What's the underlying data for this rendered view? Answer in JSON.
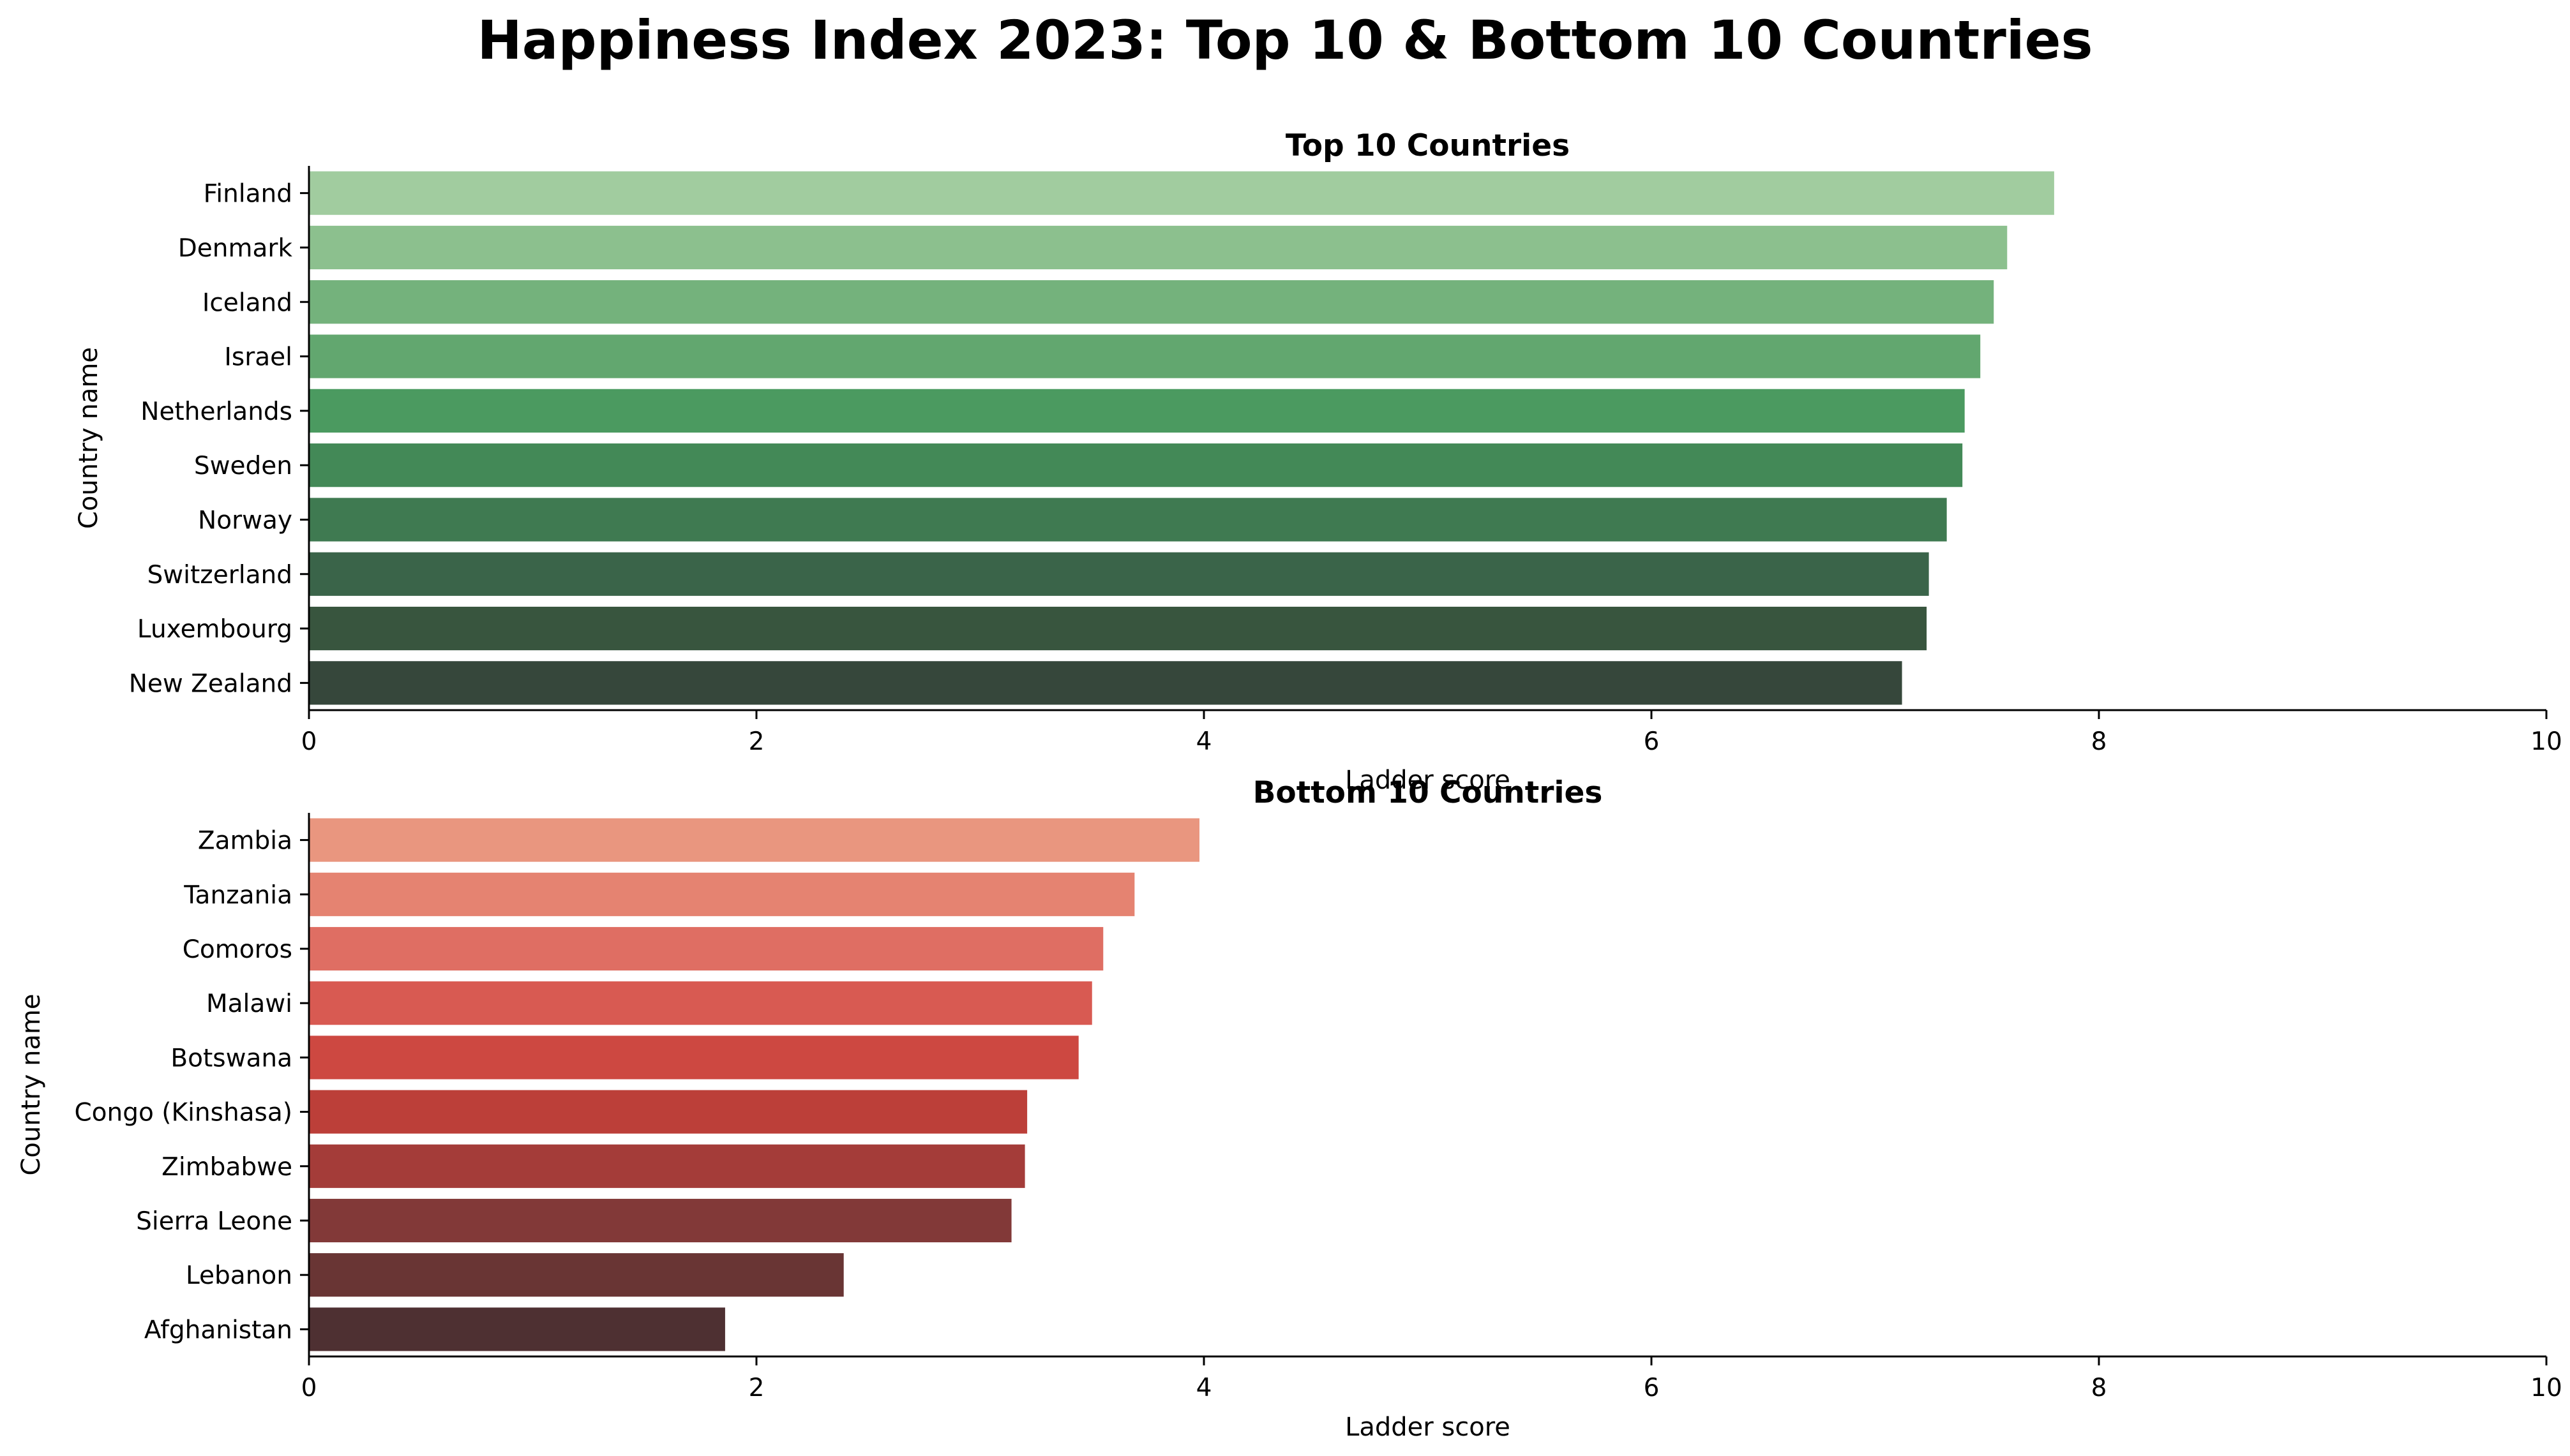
{
  "figure": {
    "title": "Happiness Index 2023: Top 10 & Bottom 10 Countries"
  },
  "chart_data": [
    {
      "type": "bar",
      "orientation": "horizontal",
      "title": "Top 10 Countries",
      "xlabel": "Ladder score",
      "ylabel": "Country name",
      "xlim": [
        0,
        10
      ],
      "xticks": [
        "0",
        "2",
        "4",
        "6",
        "8",
        "10"
      ],
      "grid": false,
      "categories": [
        "Finland",
        "Denmark",
        "Iceland",
        "Israel",
        "Netherlands",
        "Sweden",
        "Norway",
        "Switzerland",
        "Luxembourg",
        "New Zealand"
      ],
      "values": [
        7.8,
        7.59,
        7.53,
        7.47,
        7.4,
        7.39,
        7.32,
        7.24,
        7.23,
        7.12
      ],
      "colors": [
        "#a1cc9f",
        "#8cc08e",
        "#74b27c",
        "#62a76f",
        "#4b9a60",
        "#438957",
        "#3f7a51",
        "#3a6449",
        "#38553e",
        "#36473b"
      ]
    },
    {
      "type": "bar",
      "orientation": "horizontal",
      "title": "Bottom 10 Countries",
      "xlabel": "Ladder score",
      "ylabel": "Country name",
      "xlim": [
        0,
        10
      ],
      "xticks": [
        "0",
        "2",
        "4",
        "6",
        "8",
        "10"
      ],
      "grid": false,
      "categories": [
        "Zambia",
        "Tanzania",
        "Comoros",
        "Malawi",
        "Botswana",
        "Congo (Kinshasa)",
        "Zimbabwe",
        "Sierra Leone",
        "Lebanon",
        "Afghanistan"
      ],
      "values": [
        3.98,
        3.69,
        3.55,
        3.5,
        3.44,
        3.21,
        3.2,
        3.14,
        2.39,
        1.86
      ],
      "colors": [
        "#e9967f",
        "#e58371",
        "#df6e63",
        "#d85a52",
        "#cd4841",
        "#bc3f39",
        "#a43c39",
        "#823938",
        "#693534",
        "#4e3032"
      ]
    }
  ]
}
